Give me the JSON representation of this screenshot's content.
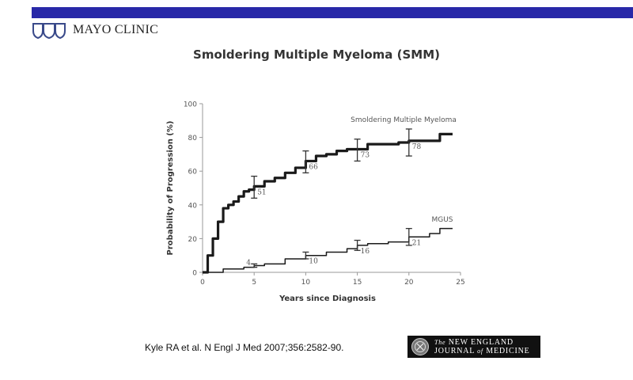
{
  "header": {
    "bar_color": "#2828a8",
    "logo_text": "MAYO CLINIC",
    "logo_icon": "mayo-shields-icon"
  },
  "slide": {
    "title": "Smoldering Multiple Myeloma (SMM)",
    "citation": "Kyle RA et al. N Engl J Med 2007;356:2582-90.",
    "journal_logo": {
      "line1_prefix": "The",
      "line1": "NEW ENGLAND",
      "line2a": "JOURNAL",
      "line2_of": "of",
      "line2b": "MEDICINE",
      "icon": "nejm-seal-icon"
    }
  },
  "chart_data": {
    "type": "line",
    "title": "",
    "xlabel": "Years since Diagnosis",
    "ylabel": "Probability of Progression (%)",
    "xlim": [
      0,
      25
    ],
    "ylim": [
      0,
      100
    ],
    "xticks": [
      0,
      5,
      10,
      15,
      20,
      25
    ],
    "yticks": [
      0,
      20,
      40,
      60,
      80,
      100
    ],
    "grid": false,
    "series": [
      {
        "name": "Smoldering Multiple Myeloma",
        "x": [
          0,
          0.5,
          1,
          1.5,
          2,
          2.5,
          3,
          3.5,
          4,
          4.5,
          5,
          6,
          7,
          8,
          9,
          10,
          11,
          12,
          13,
          14,
          15,
          16,
          17,
          18,
          19,
          20,
          21,
          22,
          23,
          24
        ],
        "values": [
          0,
          10,
          20,
          30,
          38,
          40,
          42,
          45,
          48,
          49,
          51,
          54,
          56,
          59,
          62,
          66,
          69,
          70,
          72,
          73,
          73,
          76,
          76,
          76,
          77,
          78,
          78,
          78,
          82,
          82
        ],
        "labeled_points": [
          {
            "x": 5,
            "y": 51,
            "ci": [
              44,
              57
            ]
          },
          {
            "x": 10,
            "y": 66,
            "ci": [
              59,
              72
            ]
          },
          {
            "x": 15,
            "y": 73,
            "ci": [
              66,
              79
            ]
          },
          {
            "x": 20,
            "y": 78,
            "ci": [
              69,
              85
            ]
          }
        ],
        "line_width": "thick"
      },
      {
        "name": "MGUS",
        "x": [
          0,
          2,
          4,
          5,
          6,
          8,
          10,
          12,
          14,
          15,
          16,
          18,
          19,
          20,
          21,
          22,
          23,
          24
        ],
        "values": [
          0,
          2,
          3,
          4,
          5,
          8,
          10,
          12,
          14,
          16,
          17,
          18,
          18,
          21,
          21,
          23,
          26,
          26
        ],
        "labeled_points": [
          {
            "x": 5,
            "y": 4,
            "ci": [
              3,
              5
            ]
          },
          {
            "x": 10,
            "y": 10,
            "ci": [
              8,
              12
            ]
          },
          {
            "x": 15,
            "y": 16,
            "ci": [
              13,
              19
            ]
          },
          {
            "x": 20,
            "y": 21,
            "ci": [
              16,
              26
            ]
          }
        ],
        "line_width": "thin"
      }
    ]
  }
}
